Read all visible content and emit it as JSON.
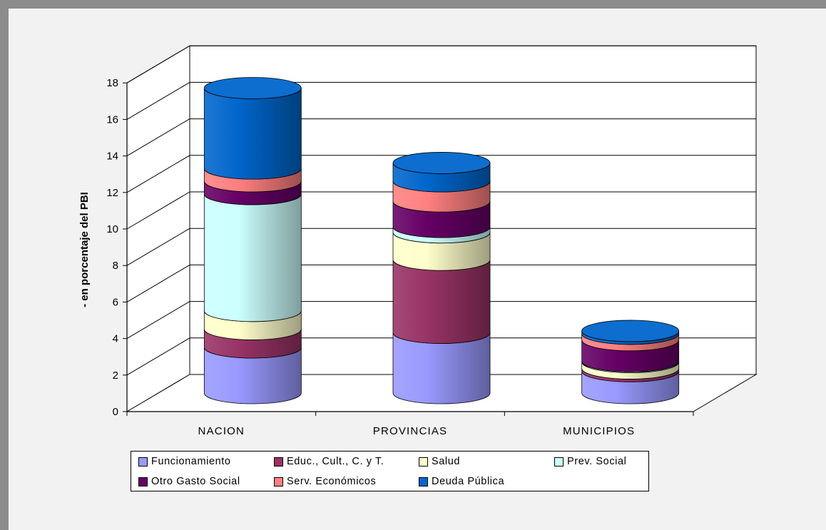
{
  "chart_data": {
    "type": "bar",
    "stacked": true,
    "three_d": true,
    "shape": "cylinder",
    "title": "",
    "xlabel": "",
    "ylabel": "- en porcentaje del PBI",
    "ylim": [
      0,
      18
    ],
    "yticks": [
      "0",
      "2",
      "4",
      "6",
      "8",
      "10",
      "12",
      "14",
      "16",
      "18"
    ],
    "grid": true,
    "legend_position": "bottom",
    "categories": [
      "NACION",
      "PROVINCIAS",
      "MUNICIPIOS"
    ],
    "series": [
      {
        "name": "Funcionamiento",
        "color": "#9999ff",
        "values": [
          2.5,
          3.3,
          1.2
        ]
      },
      {
        "name": "Educ., Cult., C. y T.",
        "color": "#993366",
        "values": [
          1.0,
          4.0,
          0.15
        ]
      },
      {
        "name": "Salud",
        "color": "#ffffcc",
        "values": [
          1.0,
          1.5,
          0.35
        ]
      },
      {
        "name": "Prev. Social",
        "color": "#ccffff",
        "values": [
          6.4,
          0.3,
          0.05
        ]
      },
      {
        "name": "Otro Gasto Social",
        "color": "#660066",
        "values": [
          0.7,
          1.4,
          1.15
        ]
      },
      {
        "name": "Serv. Económicos",
        "color": "#ff8080",
        "values": [
          0.7,
          1.1,
          0.35
        ]
      },
      {
        "name": "Deuda Pública",
        "color": "#0066cc",
        "values": [
          4.4,
          1.0,
          0.15
        ]
      }
    ]
  }
}
